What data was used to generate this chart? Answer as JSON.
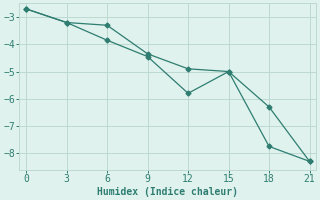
{
  "line1_x": [
    0,
    3,
    6,
    9,
    12,
    15,
    18,
    21
  ],
  "line1_y": [
    -2.7,
    -3.2,
    -3.3,
    -4.35,
    -4.9,
    -5.0,
    -6.3,
    -8.3
  ],
  "line2_x": [
    0,
    3,
    6,
    9,
    12,
    15,
    18,
    21
  ],
  "line2_y": [
    -2.7,
    -3.2,
    -3.85,
    -4.45,
    -5.8,
    -5.0,
    -7.75,
    -8.3
  ],
  "line_color": "#2e7d70",
  "bg_color": "#dff2ee",
  "grid_color": "#bdd8d2",
  "xlabel": "Humidex (Indice chaleur)",
  "xlim": [
    -0.5,
    21.5
  ],
  "ylim": [
    -8.6,
    -2.5
  ],
  "xticks": [
    0,
    3,
    6,
    9,
    12,
    15,
    18,
    21
  ],
  "yticks": [
    -8,
    -7,
    -6,
    -5,
    -4,
    -3
  ],
  "xlabel_fontsize": 7,
  "tick_fontsize": 7
}
